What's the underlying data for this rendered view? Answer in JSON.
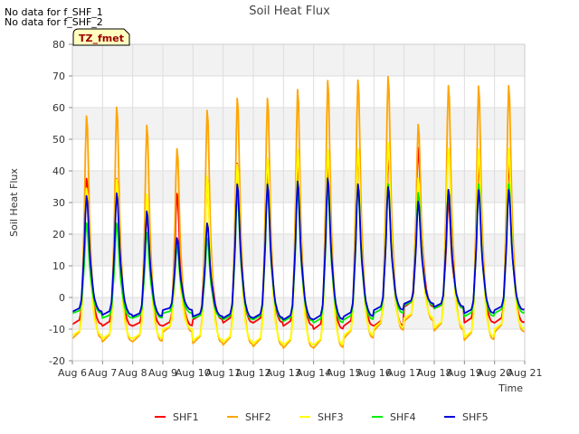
{
  "notes": [
    "No data for f_SHF_1",
    "No data for f_SHF_2"
  ],
  "chart_data": {
    "type": "line",
    "title": "Soil Heat Flux",
    "xlabel": "Time",
    "ylabel": "Soil Heat Flux",
    "xlim": [
      6,
      21
    ],
    "ylim": [
      -20,
      80
    ],
    "yticks": [
      -20,
      -10,
      0,
      10,
      20,
      30,
      40,
      50,
      60,
      70,
      80
    ],
    "xticks": [
      6,
      7,
      8,
      9,
      10,
      11,
      12,
      13,
      14,
      15,
      16,
      17,
      18,
      19,
      20,
      21
    ],
    "xtick_labels": [
      "Aug 6",
      "Aug 7",
      "Aug 8",
      "Aug 9",
      "Aug 10",
      "Aug 11",
      "Aug 12",
      "Aug 13",
      "Aug 14",
      "Aug 15",
      "Aug 16",
      "Aug 17",
      "Aug 18",
      "Aug 19",
      "Aug 20",
      "Aug 21"
    ],
    "tz_label": "TZ_fmet",
    "legend_position": "bottom-center",
    "grid": true,
    "day_labels": [
      "Aug 6",
      "Aug 7",
      "Aug 8",
      "Aug 9",
      "Aug 10",
      "Aug 11",
      "Aug 12",
      "Aug 13",
      "Aug 14",
      "Aug 15",
      "Aug 16",
      "Aug 17",
      "Aug 18",
      "Aug 19",
      "Aug 20"
    ],
    "series": [
      {
        "name": "SHF1",
        "color": "#ff0000",
        "peak": [
          40,
          40,
          28,
          35,
          40,
          45,
          42,
          45,
          45,
          48,
          48,
          50,
          32,
          45,
          45
        ],
        "min": [
          -8.5,
          -9,
          -9,
          -9,
          -7,
          -8,
          -8,
          -9,
          -10,
          -9,
          -9,
          -3,
          -3.5,
          -8,
          -8
        ]
      },
      {
        "name": "SHF2",
        "color": "#ffa500",
        "peak": [
          61,
          64,
          58,
          50,
          63,
          67,
          67,
          70,
          73,
          73,
          74,
          58,
          71,
          71,
          71
        ],
        "min": [
          -13,
          -14,
          -14,
          -11,
          -14.5,
          -15,
          -15.5,
          -16,
          -16,
          -13,
          -10.5,
          -7.5,
          -10.5,
          -13.5,
          -11
        ]
      },
      {
        "name": "SHF3",
        "color": "#ffff00",
        "peak": [
          37,
          40,
          35,
          20,
          41,
          45,
          47,
          50,
          50,
          50,
          52,
          40,
          50,
          50,
          50
        ],
        "min": [
          -12,
          -13,
          -13,
          -10,
          -13.5,
          -14,
          -14.5,
          -15,
          -15,
          -12,
          -9.5,
          -6.5,
          -9.5,
          -12.5,
          -10
        ]
      },
      {
        "name": "SHF4",
        "color": "#00ee00",
        "peak": [
          25,
          25,
          22,
          17,
          20,
          35,
          36,
          36,
          37,
          37,
          38,
          35,
          36,
          38,
          38
        ],
        "min": [
          -5,
          -6.5,
          -6.5,
          -5,
          -6.5,
          -7,
          -7,
          -7.5,
          -8,
          -7,
          -5,
          -2.5,
          -3.5,
          -6,
          -5
        ]
      },
      {
        "name": "SHF5",
        "color": "#0000dd",
        "peak": [
          34,
          35,
          29,
          20,
          25,
          38,
          38,
          39,
          40,
          38,
          37,
          32,
          36,
          36,
          36
        ],
        "min": [
          -4.5,
          -5.5,
          -6,
          -4,
          -6,
          -6.5,
          -6.5,
          -7,
          -7,
          -6,
          -4,
          -2,
          -3,
          -5,
          -4
        ]
      }
    ]
  }
}
